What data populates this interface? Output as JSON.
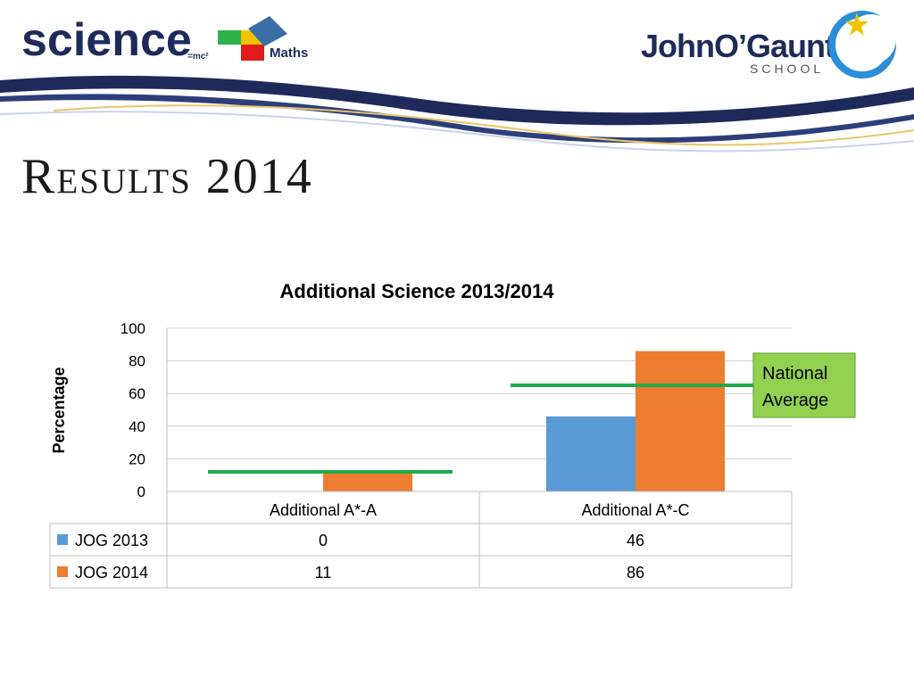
{
  "header": {
    "science_logo_text": "science",
    "science_logo_suffix": "=mc²",
    "maths_logo_text": "Maths",
    "school_name": "JohnO’Gaunt",
    "school_sub": "SCHOOL"
  },
  "slide": {
    "title": "Results 2014"
  },
  "colors": {
    "jog2013": "#5b9bd5",
    "jog2014": "#ed7d31",
    "national_line": "#1faa4b",
    "callout_fill": "#92d050",
    "navy": "#1e2a5a"
  },
  "chart_data": {
    "type": "bar",
    "title": "Additional Science 2013/2014",
    "ylabel": "Percentage",
    "xlabel": "",
    "ylim": [
      0,
      100
    ],
    "yticks": [
      0,
      20,
      40,
      60,
      80,
      100
    ],
    "grid": true,
    "categories": [
      "Additional A*-A",
      "Additional A*-C"
    ],
    "series": [
      {
        "name": "JOG 2013",
        "values": [
          0,
          46
        ],
        "color": "#5b9bd5"
      },
      {
        "name": "JOG 2014",
        "values": [
          11,
          86
        ],
        "color": "#ed7d31"
      }
    ],
    "national_average": [
      12,
      65
    ],
    "annotation": "National Average",
    "annotation_lines": [
      "National",
      "Average"
    ],
    "data_table": true
  }
}
